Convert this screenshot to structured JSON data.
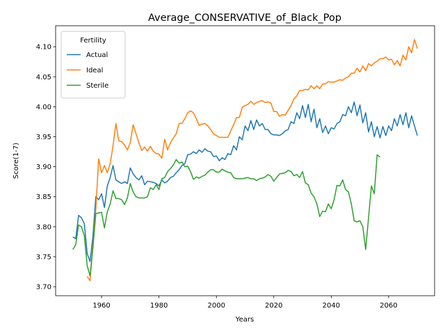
{
  "chart_data": {
    "type": "line",
    "title": "Average_CONSERVATIVE_of_Black_Pop",
    "xlabel": "Years",
    "ylabel": "Score(1-7)",
    "legend_title": "Fertility",
    "legend": "upper left",
    "x": [
      1950,
      1951,
      1952,
      1953,
      1954,
      1955,
      1956,
      1957,
      1958,
      1959,
      1960,
      1961,
      1962,
      1963,
      1964,
      1965,
      1966,
      1967,
      1968,
      1969,
      1970,
      1971,
      1972,
      1973,
      1974,
      1975,
      1976,
      1977,
      1978,
      1979,
      1980,
      1981,
      1982,
      1983,
      1984,
      1985,
      1986,
      1987,
      1988,
      1989,
      1990,
      1991,
      1992,
      1993,
      1994,
      1995,
      1996,
      1997,
      1998,
      1999,
      2000,
      2001,
      2002,
      2003,
      2004,
      2005,
      2006,
      2007,
      2008,
      2009,
      2010,
      2011,
      2012,
      2013,
      2014,
      2015,
      2016,
      2017,
      2018,
      2019,
      2020,
      2021,
      2022,
      2023,
      2024,
      2025,
      2026,
      2027,
      2028,
      2029,
      2030,
      2031,
      2032,
      2033,
      2034,
      2035,
      2036,
      2037,
      2038,
      2039,
      2040,
      2041,
      2042,
      2043,
      2044,
      2045,
      2046,
      2047,
      2048,
      2049,
      2050,
      2051,
      2052,
      2053,
      2054,
      2055,
      2056,
      2057,
      2058,
      2059,
      2060,
      2061,
      2062,
      2063,
      2064,
      2065,
      2066,
      2067,
      2068,
      2069,
      2070
    ],
    "series": [
      {
        "name": "Actual",
        "color": "#1f77b4",
        "values": [
          3.783,
          3.78,
          3.819,
          3.815,
          3.805,
          3.755,
          3.742,
          3.785,
          3.85,
          3.845,
          3.855,
          3.832,
          3.868,
          3.882,
          3.902,
          3.878,
          3.875,
          3.872,
          3.875,
          3.872,
          3.898,
          3.888,
          3.882,
          3.878,
          3.885,
          3.87,
          3.876,
          3.875,
          3.874,
          3.872,
          3.868,
          3.878,
          3.873,
          3.876,
          3.882,
          3.884,
          3.89,
          3.895,
          3.902,
          3.905,
          3.92,
          3.921,
          3.925,
          3.922,
          3.928,
          3.924,
          3.93,
          3.926,
          3.925,
          3.917,
          3.918,
          3.91,
          3.915,
          3.912,
          3.922,
          3.92,
          3.935,
          3.928,
          3.95,
          3.945,
          3.968,
          3.96,
          3.977,
          3.962,
          3.978,
          3.968,
          3.972,
          3.962,
          3.962,
          3.955,
          3.953,
          3.953,
          3.952,
          3.955,
          3.96,
          3.962,
          3.975,
          3.972,
          3.99,
          3.98,
          4.002,
          3.982,
          4.004,
          3.975,
          3.996,
          3.965,
          3.98,
          3.957,
          3.968,
          3.955,
          3.965,
          3.963,
          3.972,
          3.975,
          3.987,
          3.985,
          4.0,
          3.99,
          4.008,
          3.985,
          4.003,
          3.973,
          3.99,
          3.958,
          3.975,
          3.95,
          3.967,
          3.948,
          3.967,
          3.952,
          3.968,
          3.96,
          3.98,
          3.968,
          3.987,
          3.97,
          3.99,
          3.965,
          3.985,
          3.968,
          3.952
        ]
      },
      {
        "name": "Ideal",
        "color": "#ff7f0e",
        "values": [
          null,
          null,
          null,
          null,
          null,
          3.717,
          3.71,
          3.77,
          3.83,
          3.913,
          3.89,
          3.902,
          3.89,
          3.905,
          3.935,
          3.972,
          3.943,
          3.942,
          3.936,
          3.928,
          3.94,
          3.97,
          3.955,
          3.94,
          3.927,
          3.933,
          3.926,
          3.934,
          3.926,
          3.922,
          3.921,
          3.914,
          3.946,
          3.928,
          3.94,
          3.948,
          3.955,
          3.972,
          3.972,
          3.98,
          3.99,
          3.993,
          3.99,
          3.98,
          3.969,
          3.971,
          3.972,
          3.968,
          3.962,
          3.955,
          3.952,
          3.949,
          3.949,
          3.949,
          3.949,
          3.96,
          3.97,
          3.982,
          3.982,
          3.999,
          4.002,
          4.004,
          4.009,
          4.004,
          4.007,
          4.009,
          4.01,
          4.007,
          4.008,
          4.006,
          3.992,
          3.992,
          3.984,
          3.987,
          3.986,
          3.994,
          4.002,
          4.013,
          4.018,
          4.027,
          4.027,
          4.029,
          4.028,
          4.035,
          4.03,
          4.035,
          4.03,
          4.038,
          4.038,
          4.042,
          4.041,
          4.041,
          4.043,
          4.045,
          4.044,
          4.048,
          4.05,
          4.056,
          4.056,
          4.064,
          4.058,
          4.068,
          4.06,
          4.072,
          4.068,
          4.073,
          4.076,
          4.08,
          4.08,
          4.083,
          4.078,
          4.079,
          4.07,
          4.077,
          4.068,
          4.086,
          4.078,
          4.1,
          4.09,
          4.112,
          4.097
        ]
      },
      {
        "name": "Sterile",
        "color": "#2ca02c",
        "values": [
          3.762,
          3.77,
          3.803,
          3.8,
          3.785,
          3.735,
          3.718,
          3.765,
          3.822,
          3.823,
          3.824,
          3.798,
          3.825,
          3.838,
          3.86,
          3.847,
          3.847,
          3.845,
          3.837,
          3.848,
          3.872,
          3.858,
          3.85,
          3.848,
          3.848,
          3.848,
          3.85,
          3.865,
          3.862,
          3.87,
          3.862,
          3.88,
          3.882,
          3.892,
          3.897,
          3.903,
          3.912,
          3.906,
          3.908,
          3.9,
          3.901,
          3.892,
          3.879,
          3.883,
          3.881,
          3.884,
          3.886,
          3.891,
          3.895,
          3.895,
          3.891,
          3.891,
          3.896,
          3.893,
          3.891,
          3.89,
          3.882,
          3.88,
          3.88,
          3.88,
          3.881,
          3.882,
          3.88,
          3.88,
          3.877,
          3.88,
          3.881,
          3.883,
          3.887,
          3.884,
          3.876,
          3.882,
          3.888,
          3.889,
          3.89,
          3.894,
          3.892,
          3.885,
          3.887,
          3.882,
          3.892,
          3.873,
          3.87,
          3.856,
          3.85,
          3.838,
          3.817,
          3.826,
          3.825,
          3.838,
          3.83,
          3.845,
          3.869,
          3.868,
          3.878,
          3.862,
          3.858,
          3.838,
          3.81,
          3.808,
          3.81,
          3.8,
          3.762,
          3.815,
          3.868,
          3.855,
          3.92,
          3.916,
          null,
          null,
          null,
          null,
          null,
          null,
          null,
          null,
          null,
          null,
          null,
          null,
          null
        ]
      }
    ],
    "xlim": [
      1944,
      2076
    ],
    "xticks": [
      1960,
      1980,
      2000,
      2020,
      2040,
      2060
    ],
    "ylim": [
      3.685,
      4.135
    ],
    "yticks": [
      {
        "value": 3.7,
        "label": "3.70"
      },
      {
        "value": 3.75,
        "label": "3.75"
      },
      {
        "value": 3.8,
        "label": "3.80"
      },
      {
        "value": 3.85,
        "label": "3.85"
      },
      {
        "value": 3.9,
        "label": "3.90"
      },
      {
        "value": 3.95,
        "label": "3.95"
      },
      {
        "value": 4.0,
        "label": "4.00"
      },
      {
        "value": 4.05,
        "label": "4.05"
      },
      {
        "value": 4.1,
        "label": "4.10"
      }
    ],
    "grid": false
  }
}
